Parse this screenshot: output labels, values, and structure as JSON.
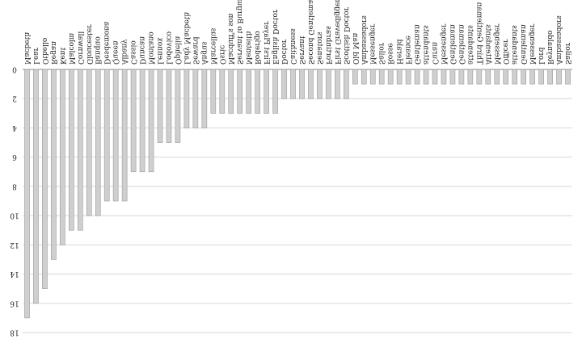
{
  "chart_data": {
    "type": "bar",
    "orientation": "vertical, inverted (bars grow downward)",
    "title": "",
    "xlabel": "",
    "ylabel": "",
    "ylim": [
      0,
      18
    ],
    "yticks": [
      0,
      2,
      4,
      6,
      8,
      10,
      12,
      14,
      16,
      18
    ],
    "grid": true,
    "categories": [
      "Macbeth",
      "Lear",
      "Othello",
      "Regan",
      "Kent",
      "Malcolm",
      "Cornwall",
      "Gloucester",
      "Banquo",
      "Desdemona",
      "Queen",
      "Albany",
      "Cassio",
      "Duncan",
      "Montano",
      "Lennox",
      "Lodovico",
      "Ophelia",
      "Lady Macbeth",
      "Seward",
      "Angus",
      "Marcellus",
      "Osric",
      "Macduff's son",
      "Servant to Burgundy",
      "Menteith",
      "Roderigo",
      "First Player",
      "English Doctor",
      "Doctor",
      "Caithness",
      "Servant",
      "Second Gentleman",
      "Senators",
      "Fortinbras",
      "First Gravedigger",
      "Scottish Doctor",
      "Old Man",
      "Ambassadors",
      "Messenger",
      "Sailor",
      "Rosse",
      "Herald",
      "Fleance",
      "Gentleman",
      "attendants",
      "Curan",
      "Messenger",
      "Gentleman",
      "Gentleman",
      "attendants",
      "Third Gentleman",
      "Attendants",
      "Messenger",
      "Officer",
      "attendants",
      "Gentleman",
      "Messenger",
      "Lord",
      "Reynaldo",
      "Ambassadors",
      "Sailor"
    ],
    "values": [
      17,
      16,
      15,
      13,
      12,
      11,
      11,
      10,
      10,
      9,
      9,
      9,
      7,
      7,
      7,
      5,
      5,
      5,
      4,
      4,
      4,
      3,
      3,
      3,
      3,
      3,
      3,
      3,
      3,
      2,
      2,
      2,
      2,
      2,
      2,
      2,
      2,
      1,
      1,
      1,
      1,
      1,
      1,
      1,
      1,
      1,
      1,
      1,
      1,
      1,
      1,
      1,
      1,
      1,
      1,
      1,
      1,
      1,
      1,
      1,
      1,
      1
    ],
    "axis_labels": {
      "tick_0": "0",
      "tick_2": "2",
      "tick_4": "4",
      "tick_6": "6",
      "tick_8": "8",
      "tick_10": "10",
      "tick_12": "12",
      "tick_14": "14",
      "tick_16": "16",
      "tick_18": "18"
    }
  }
}
